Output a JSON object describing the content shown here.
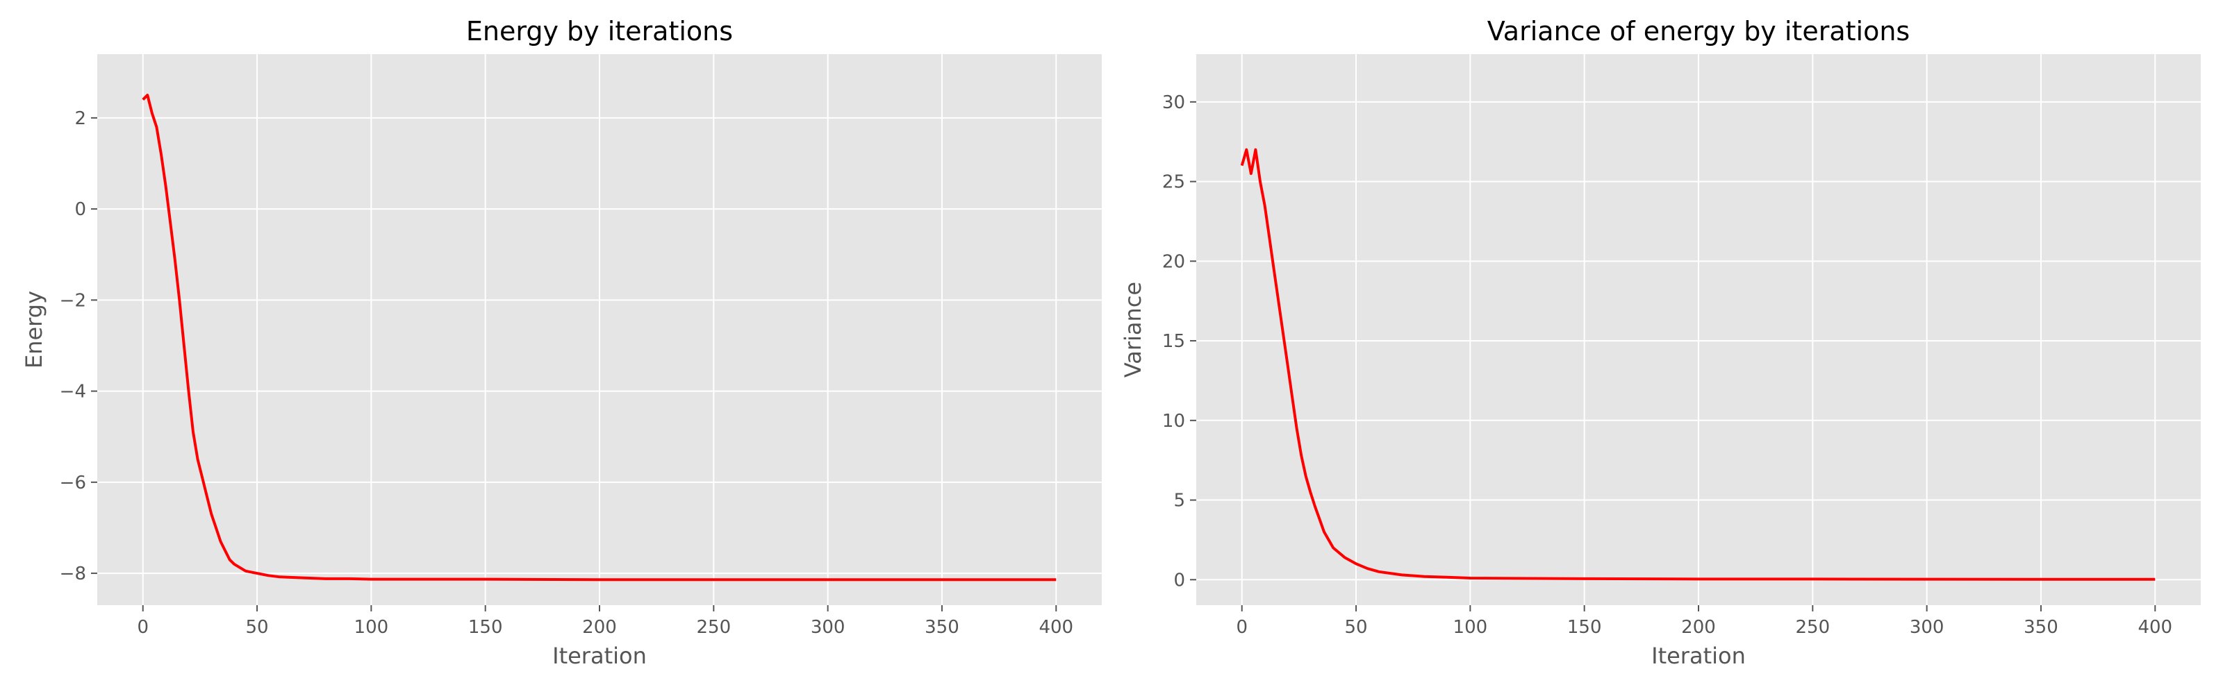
{
  "chart_data": [
    {
      "type": "line",
      "title": "Energy by iterations",
      "xlabel": "Iteration",
      "ylabel": "Energy",
      "xlim": [
        -20,
        420
      ],
      "ylim": [
        -8.7,
        3.4
      ],
      "xticks": [
        0,
        50,
        100,
        150,
        200,
        250,
        300,
        350,
        400
      ],
      "yticks": [
        -8,
        -6,
        -4,
        -2,
        0,
        2
      ],
      "grid": true,
      "legend": "none",
      "series": [
        {
          "color": "#ff0000",
          "x": [
            0,
            2,
            4,
            6,
            8,
            10,
            12,
            14,
            16,
            18,
            20,
            22,
            24,
            26,
            28,
            30,
            32,
            34,
            36,
            38,
            40,
            45,
            50,
            55,
            60,
            70,
            80,
            90,
            100,
            120,
            150,
            200,
            250,
            300,
            350,
            400
          ],
          "values": [
            2.4,
            2.5,
            2.1,
            1.8,
            1.2,
            0.5,
            -0.3,
            -1.1,
            -2.0,
            -3.0,
            -4.0,
            -4.9,
            -5.5,
            -5.9,
            -6.3,
            -6.7,
            -7.0,
            -7.3,
            -7.5,
            -7.7,
            -7.8,
            -7.95,
            -8.0,
            -8.05,
            -8.08,
            -8.1,
            -8.12,
            -8.12,
            -8.13,
            -8.13,
            -8.13,
            -8.14,
            -8.14,
            -8.14,
            -8.14,
            -8.14
          ]
        }
      ]
    },
    {
      "type": "line",
      "title": "Variance of energy by iterations",
      "xlabel": "Iteration",
      "ylabel": "Variance",
      "xlim": [
        -20,
        420
      ],
      "ylim": [
        -1.6,
        33
      ],
      "xticks": [
        0,
        50,
        100,
        150,
        200,
        250,
        300,
        350,
        400
      ],
      "yticks": [
        0,
        5,
        10,
        15,
        20,
        25,
        30
      ],
      "grid": true,
      "legend": "none",
      "series": [
        {
          "color": "#ff0000",
          "x": [
            0,
            2,
            4,
            6,
            8,
            10,
            12,
            14,
            16,
            18,
            20,
            22,
            24,
            26,
            28,
            30,
            32,
            34,
            36,
            38,
            40,
            45,
            50,
            55,
            60,
            70,
            80,
            90,
            100,
            120,
            150,
            200,
            250,
            300,
            350,
            400
          ],
          "values": [
            26,
            27,
            25.5,
            27,
            25,
            23.5,
            21.5,
            19.5,
            17.5,
            15.5,
            13.5,
            11.5,
            9.5,
            7.8,
            6.5,
            5.5,
            4.6,
            3.8,
            3.0,
            2.5,
            2.0,
            1.4,
            1.0,
            0.7,
            0.5,
            0.3,
            0.2,
            0.15,
            0.1,
            0.08,
            0.06,
            0.04,
            0.04,
            0.03,
            0.02,
            0.02
          ]
        }
      ]
    }
  ]
}
